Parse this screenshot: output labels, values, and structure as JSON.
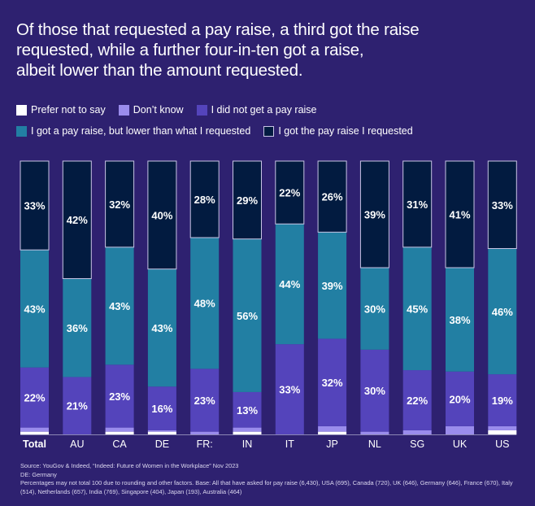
{
  "chart_data": {
    "type": "bar",
    "stacked": true,
    "orientation": "vertical",
    "title": "Of those that requested a pay raise, a third got the raise requested, while a further four-in-ten got a raise, albeit lower than the amount requested.",
    "xlabel": "",
    "ylabel": "",
    "ylim": [
      0,
      100
    ],
    "grid": false,
    "legend_position": "top",
    "categories": [
      "Total",
      "AU",
      "CA",
      "DE",
      "FR:",
      "IN",
      "IT",
      "JP",
      "NL",
      "SG",
      "UK",
      "US"
    ],
    "series": [
      {
        "name": "Prefer not to say",
        "color": "#ffffff",
        "values": [
          1,
          0,
          1,
          1,
          0,
          1,
          0,
          1,
          0,
          0,
          0,
          1.5
        ],
        "labeled": false
      },
      {
        "name": "Don’t know",
        "color": "#9a8cec",
        "values": [
          1.5,
          0,
          1.5,
          0.5,
          1,
          1.5,
          0,
          2,
          1,
          1.5,
          3,
          1.5
        ],
        "labeled": false
      },
      {
        "name": "I did not get a pay raise",
        "color": "#5444bb",
        "values": [
          22,
          21,
          23,
          16,
          23,
          13,
          33,
          32,
          30,
          22,
          20,
          19
        ],
        "labeled": true
      },
      {
        "name": "I got a pay raise, but lower than what I requested",
        "color": "#227fa3",
        "values": [
          43,
          36,
          43,
          43,
          48,
          56,
          44,
          39,
          30,
          45,
          38,
          46
        ],
        "labeled": true
      },
      {
        "name": "I got the pay raise I requested",
        "color": "#021b40",
        "values": [
          33,
          42,
          32,
          40,
          28,
          29,
          22,
          26,
          39,
          31,
          41,
          33
        ],
        "labeled": true
      }
    ],
    "label_suffix": "%"
  },
  "title_lines": [
    "Of those that requested a pay raise, a third got the raise",
    "requested, while a further four-in-ten got a raise,",
    "albeit lower than the amount requested."
  ],
  "legend": {
    "row1": [
      {
        "label": "Prefer not to say",
        "color": "#ffffff"
      },
      {
        "label": "Don’t know",
        "color": "#9a8cec"
      },
      {
        "label": "I did not get a pay raise",
        "color": "#5444bb"
      }
    ],
    "row2": [
      {
        "label": "I got a pay raise, but lower than what I requested",
        "color": "#227fa3"
      },
      {
        "label": "I got the pay raise I requested",
        "color": "#021b40"
      }
    ]
  },
  "footer": {
    "source": "Source: YouGov & Indeed, “Indeed: Future of Women in the Workplace” Nov 2023",
    "abbrev": "DE: Germany",
    "note": "Percentages may not total 100 due to rounding and other factors. Base: All that have asked for pay raise (6,430), USA (695), Canada (720), UK (646), Germany (646), France (670), Italy (514), Netherlands (657), India (769), Singapore (404), Japan (193), Australia (464)"
  }
}
